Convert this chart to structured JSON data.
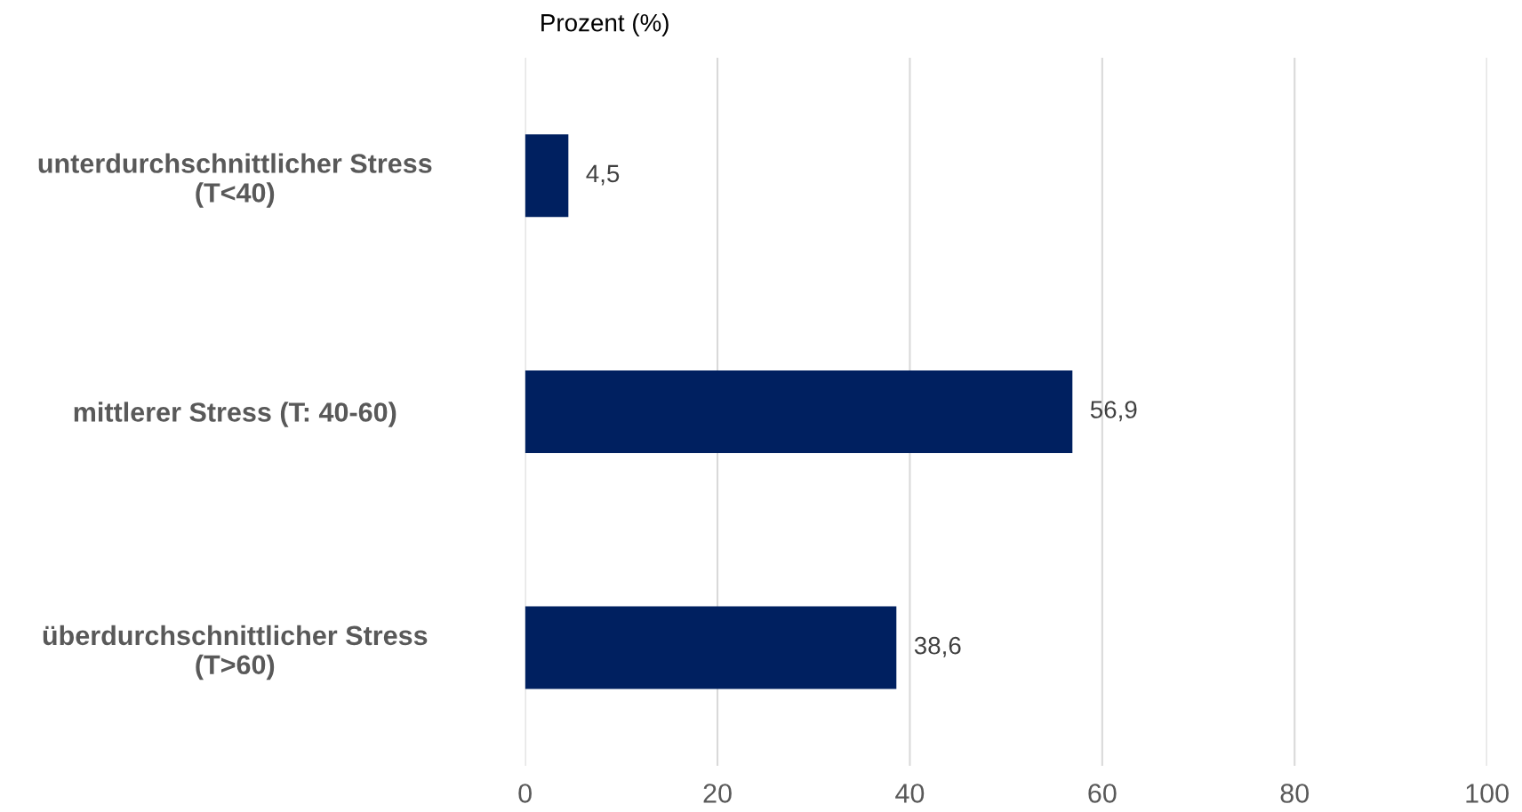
{
  "chart_data": {
    "type": "bar",
    "orientation": "horizontal",
    "xlabel": "Prozent (%)",
    "categories": [
      "unterdurchschnittlicher Stress\n(T<40)",
      "mittlerer Stress (T: 40-60)",
      "überdurchschnittlicher Stress\n(T>60)"
    ],
    "values": [
      4.5,
      56.9,
      38.6
    ],
    "value_labels": [
      "4,5",
      "56,9",
      "38,6"
    ],
    "color": "#002060",
    "xlim": [
      0,
      100
    ],
    "xticks": [
      0,
      20,
      40,
      60,
      80,
      100
    ],
    "grid": "x"
  }
}
